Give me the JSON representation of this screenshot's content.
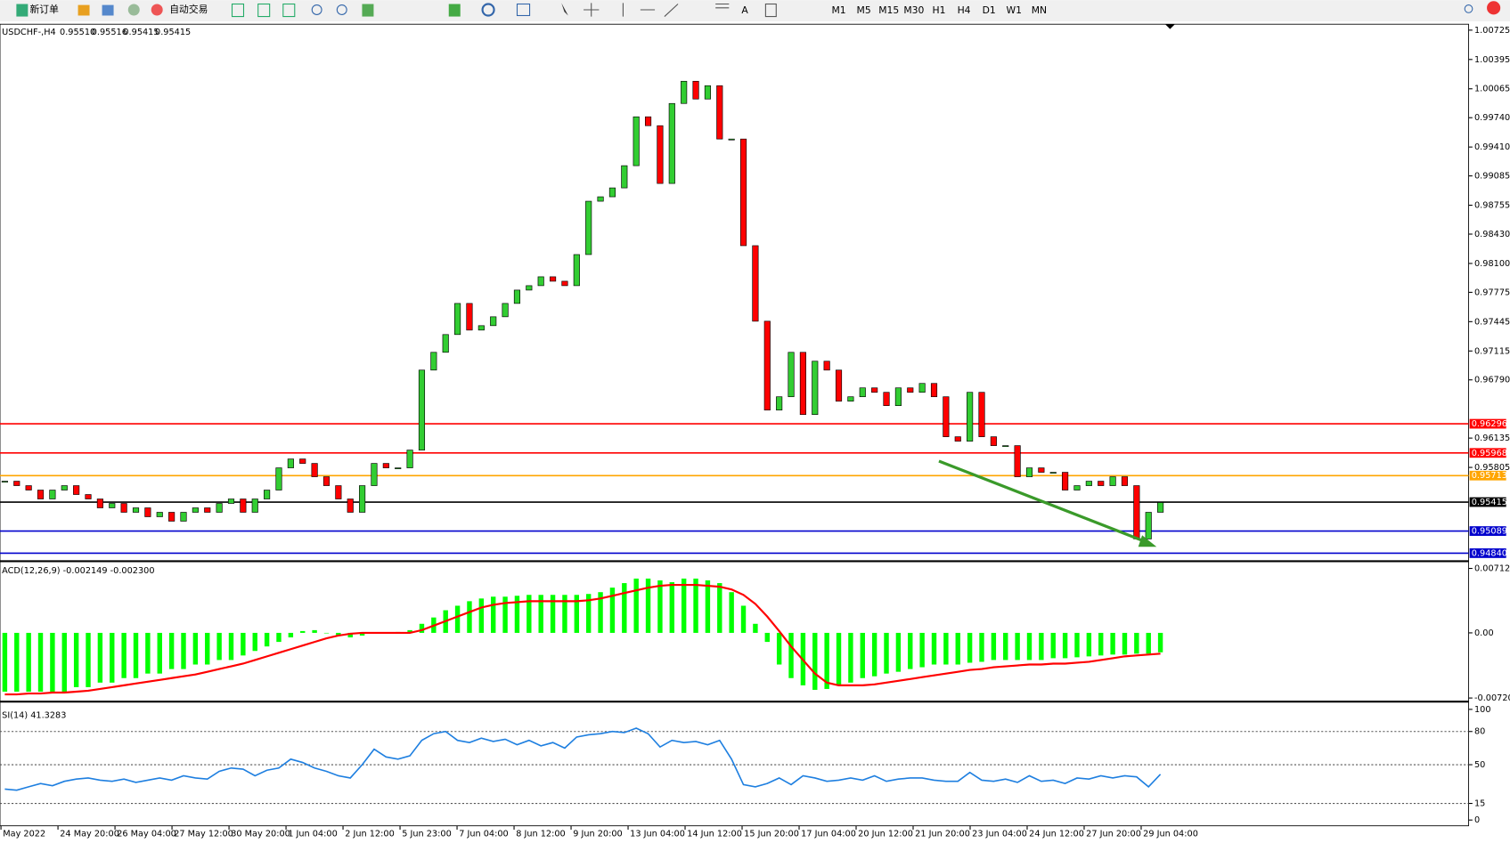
{
  "toolbar": {
    "buttons": [
      "新订单",
      "自动交易"
    ],
    "timeframes": [
      "M1",
      "M5",
      "M15",
      "M30",
      "H1",
      "H4",
      "D1",
      "W1",
      "MN"
    ]
  },
  "chart_data": [
    {
      "type": "candlestick",
      "title": "USDCHF-,H4",
      "quote": [
        "0.95510",
        "0.95516",
        "0.95415",
        "0.95415"
      ],
      "ylim": [
        0.9475,
        1.0077
      ],
      "yticks": [
        {
          "value": 1.00725,
          "label": "1.00725"
        },
        {
          "value": 1.00395,
          "label": "1.00395"
        },
        {
          "value": 1.00065,
          "label": "1.00065"
        },
        {
          "value": 0.9974,
          "label": "0.99740"
        },
        {
          "value": 0.9941,
          "label": "0.99410"
        },
        {
          "value": 0.99085,
          "label": "0.99085"
        },
        {
          "value": 0.98755,
          "label": "0.98755"
        },
        {
          "value": 0.9843,
          "label": "0.98430"
        },
        {
          "value": 0.981,
          "label": "0.98100"
        },
        {
          "value": 0.97775,
          "label": "0.97775"
        },
        {
          "value": 0.97445,
          "label": "0.97445"
        },
        {
          "value": 0.97115,
          "label": "0.97115"
        },
        {
          "value": 0.9679,
          "label": "0.96790"
        },
        {
          "value": 0.96135,
          "label": "0.96135"
        },
        {
          "value": 0.95805,
          "label": "0.95805"
        }
      ],
      "levels": [
        {
          "value": 0.96296,
          "label": "0.96296",
          "color": "#ff0000"
        },
        {
          "value": 0.95968,
          "label": "0.95968",
          "color": "#ff0000"
        },
        {
          "value": 0.95713,
          "label": "0.95713",
          "color": "#ffa500"
        },
        {
          "value": 0.95415,
          "label": "0.95415",
          "color": "#000000"
        },
        {
          "value": 0.95089,
          "label": "0.95089",
          "color": "#0000cd"
        },
        {
          "value": 0.9484,
          "label": "0.94840",
          "color": "#0000cd"
        }
      ],
      "up_color": "#32cd32",
      "down_color": "#ff0000",
      "values": [
        0.9565,
        0.956,
        0.9555,
        0.9545,
        0.9555,
        0.956,
        0.955,
        0.9545,
        0.9535,
        0.954,
        0.953,
        0.9535,
        0.9525,
        0.953,
        0.952,
        0.953,
        0.9535,
        0.953,
        0.954,
        0.9545,
        0.953,
        0.9545,
        0.9555,
        0.958,
        0.959,
        0.9585,
        0.957,
        0.956,
        0.9545,
        0.953,
        0.956,
        0.9585,
        0.958,
        0.958,
        0.96,
        0.969,
        0.971,
        0.973,
        0.9765,
        0.9735,
        0.974,
        0.975,
        0.9765,
        0.978,
        0.9785,
        0.9795,
        0.979,
        0.9785,
        0.982,
        0.988,
        0.9885,
        0.9895,
        0.992,
        0.9975,
        0.9965,
        0.99,
        0.999,
        1.0015,
        0.9995,
        1.001,
        0.995,
        0.995,
        0.983,
        0.9745,
        0.9645,
        0.966,
        0.971,
        0.964,
        0.97,
        0.969,
        0.9655,
        0.966,
        0.967,
        0.9665,
        0.965,
        0.967,
        0.9665,
        0.9675,
        0.966,
        0.9615,
        0.961,
        0.9665,
        0.9615,
        0.9605,
        0.9605,
        0.957,
        0.958,
        0.9575,
        0.9575,
        0.9555,
        0.956,
        0.9565,
        0.956,
        0.957,
        0.956,
        0.95,
        0.953,
        0.9541
      ],
      "x_labels": [
        "May 2022",
        "24 May 20:00",
        "26 May 04:00",
        "27 May 12:00",
        "30 May 20:00",
        "1 Jun 04:00",
        "2 Jun 12:00",
        "5 Jun 23:00",
        "7 Jun 04:00",
        "8 Jun 12:00",
        "9 Jun 20:00",
        "13 Jun 04:00",
        "14 Jun 12:00",
        "15 Jun 20:00",
        "17 Jun 04:00",
        "20 Jun 12:00",
        "21 Jun 20:00",
        "23 Jun 04:00",
        "24 Jun 12:00",
        "27 Jun 20:00",
        "29 Jun 04:00"
      ]
    },
    {
      "type": "macd",
      "title": "ACD(12,26,9) -0.002149 -0.002300",
      "ylim": [
        -0.0075,
        0.0075
      ],
      "yticks": [
        {
          "value": 0.007125,
          "label": "0.007125"
        },
        {
          "value": 0,
          "label": "0.00"
        },
        {
          "value": -0.007201,
          "label": "-0.007201"
        }
      ],
      "color": "#00ff00",
      "signal_color": "#ff0000",
      "values": [
        -0.0065,
        -0.0065,
        -0.0065,
        -0.0065,
        -0.0065,
        -0.0065,
        -0.006,
        -0.006,
        -0.0055,
        -0.0055,
        -0.005,
        -0.005,
        -0.0045,
        -0.0045,
        -0.004,
        -0.004,
        -0.0035,
        -0.0035,
        -0.003,
        -0.003,
        -0.0025,
        -0.002,
        -0.0015,
        -0.001,
        -0.0005,
        0.0002,
        0.0003,
        0,
        -0.0003,
        -0.0005,
        -0.0003,
        0,
        0,
        0.0001,
        0.0003,
        0.001,
        0.0017,
        0.0025,
        0.003,
        0.0035,
        0.0038,
        0.004,
        0.004,
        0.0041,
        0.0042,
        0.0042,
        0.0042,
        0.0042,
        0.0042,
        0.0043,
        0.0045,
        0.005,
        0.0055,
        0.006,
        0.006,
        0.0058,
        0.0056,
        0.006,
        0.006,
        0.0058,
        0.0055,
        0.0045,
        0.003,
        0.001,
        -0.001,
        -0.0035,
        -0.005,
        -0.0058,
        -0.0063,
        -0.0062,
        -0.0058,
        -0.0055,
        -0.005,
        -0.0048,
        -0.0045,
        -0.0043,
        -0.004,
        -0.0038,
        -0.0035,
        -0.0035,
        -0.0035,
        -0.0033,
        -0.0032,
        -0.003,
        -0.003,
        -0.003,
        -0.003,
        -0.003,
        -0.0028,
        -0.0028,
        -0.0027,
        -0.0026,
        -0.0025,
        -0.0024,
        -0.0024,
        -0.0023,
        -0.0023,
        -0.002149
      ],
      "signal": [
        -0.0068,
        -0.0068,
        -0.0067,
        -0.0067,
        -0.0066,
        -0.0066,
        -0.0065,
        -0.0064,
        -0.0062,
        -0.006,
        -0.0058,
        -0.0056,
        -0.0054,
        -0.0052,
        -0.005,
        -0.0048,
        -0.0046,
        -0.0043,
        -0.004,
        -0.0037,
        -0.0034,
        -0.003,
        -0.0026,
        -0.0022,
        -0.0018,
        -0.0014,
        -0.001,
        -0.0006,
        -0.0003,
        -0.0001,
        0,
        0,
        0,
        0,
        0,
        0.0003,
        0.0008,
        0.0013,
        0.0018,
        0.0023,
        0.0028,
        0.0031,
        0.0033,
        0.0034,
        0.0035,
        0.0035,
        0.0035,
        0.0035,
        0.0035,
        0.0036,
        0.0038,
        0.0041,
        0.0044,
        0.0047,
        0.005,
        0.0052,
        0.0053,
        0.0053,
        0.0053,
        0.0052,
        0.0051,
        0.0048,
        0.0042,
        0.0032,
        0.0018,
        0.0002,
        -0.0015,
        -0.003,
        -0.0045,
        -0.0055,
        -0.0058,
        -0.0058,
        -0.0058,
        -0.0057,
        -0.0055,
        -0.0053,
        -0.0051,
        -0.0049,
        -0.0047,
        -0.0045,
        -0.0043,
        -0.0041,
        -0.004,
        -0.0038,
        -0.0037,
        -0.0036,
        -0.0035,
        -0.0035,
        -0.0034,
        -0.0034,
        -0.0033,
        -0.0032,
        -0.003,
        -0.0028,
        -0.0026,
        -0.0025,
        -0.0024,
        -0.0023
      ]
    },
    {
      "type": "line",
      "title": "SI(14) 41.3283",
      "ylim": [
        0,
        100
      ],
      "yticks": [
        100,
        80,
        50,
        15,
        0
      ],
      "levels": [
        80,
        50,
        15
      ],
      "color": "#1e7fe0",
      "values": [
        28,
        27,
        30,
        33,
        31,
        35,
        37,
        38,
        36,
        35,
        37,
        34,
        36,
        38,
        36,
        40,
        38,
        37,
        44,
        47,
        46,
        40,
        45,
        47,
        55,
        52,
        47,
        44,
        40,
        38,
        50,
        64,
        57,
        55,
        58,
        72,
        78,
        80,
        72,
        70,
        74,
        71,
        73,
        68,
        72,
        67,
        70,
        65,
        75,
        77,
        78,
        80,
        79,
        83,
        78,
        66,
        72,
        70,
        71,
        68,
        72,
        55,
        32,
        30,
        33,
        38,
        32,
        40,
        38,
        35,
        36,
        38,
        36,
        40,
        35,
        37,
        38,
        38,
        36,
        35,
        35,
        43,
        36,
        35,
        37,
        34,
        40,
        35,
        36,
        33,
        38,
        37,
        40,
        38,
        40,
        39,
        30,
        41.3283
      ]
    }
  ]
}
